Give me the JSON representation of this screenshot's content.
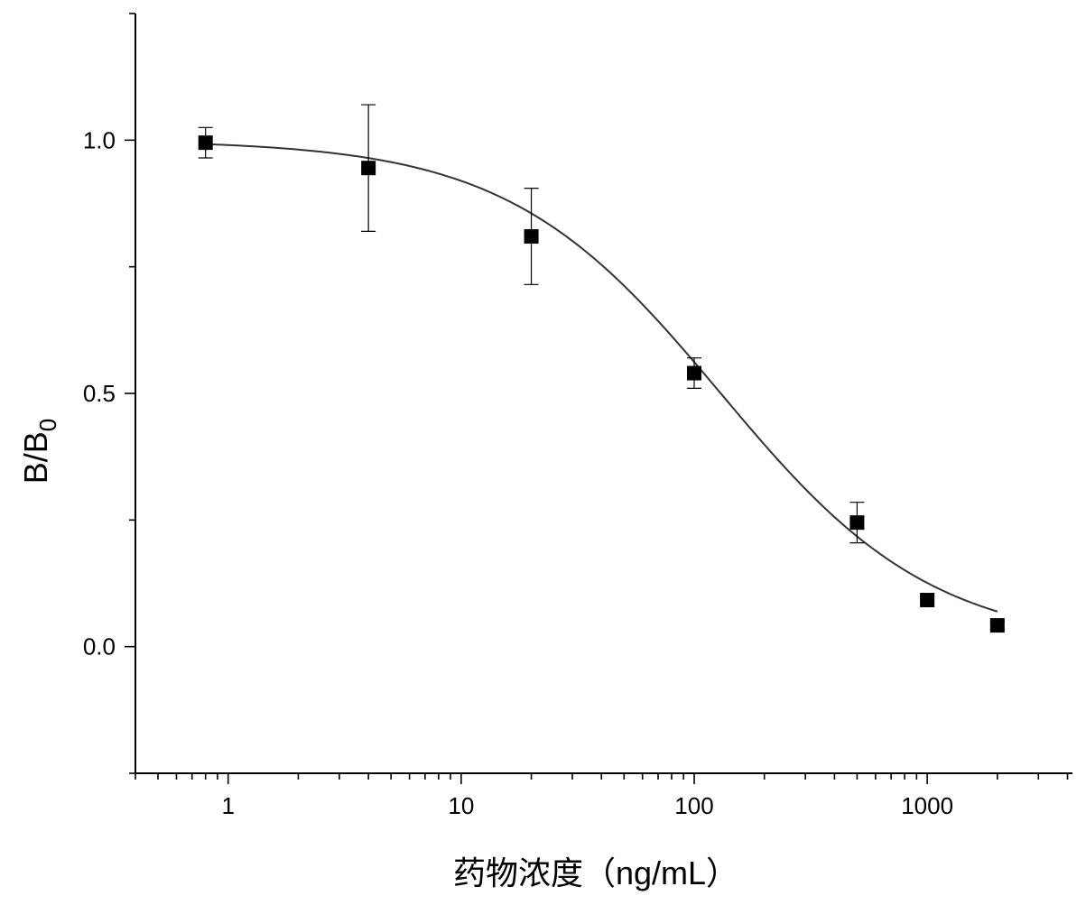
{
  "chart_data": {
    "type": "scatter",
    "title": "",
    "xlabel": "药物浓度（ng/mL）",
    "ylabel_main": "B/B",
    "ylabel_sub": "0",
    "x_scale": "log",
    "xlim": [
      0.4,
      4200
    ],
    "ylim": [
      -0.25,
      1.25
    ],
    "x_major_ticks": [
      1,
      10,
      100,
      1000
    ],
    "x_tick_labels": [
      "1",
      "10",
      "100",
      "1000"
    ],
    "y_major_ticks": [
      0.0,
      0.5,
      1.0
    ],
    "y_tick_labels": [
      "0.0",
      "0.5",
      "1.0"
    ],
    "y_minor_ticks": [
      -0.25,
      0.25,
      0.75,
      1.25
    ],
    "grid": false,
    "legend": "none",
    "marker_color": "#000000",
    "curve_color": "#333333",
    "series": [
      {
        "x": [
          0.8,
          4,
          20,
          100,
          500,
          1000,
          2000
        ],
        "y": [
          0.995,
          0.945,
          0.81,
          0.54,
          0.245,
          0.092,
          0.042
        ],
        "error": [
          0.03,
          0.125,
          0.095,
          0.03,
          0.04,
          0.008,
          0.008
        ]
      }
    ],
    "fit_curve": {
      "type": "four-parameter-logistic",
      "top": 1.0,
      "bottom": 0.0,
      "ic50": 130,
      "hill": 0.95
    }
  }
}
